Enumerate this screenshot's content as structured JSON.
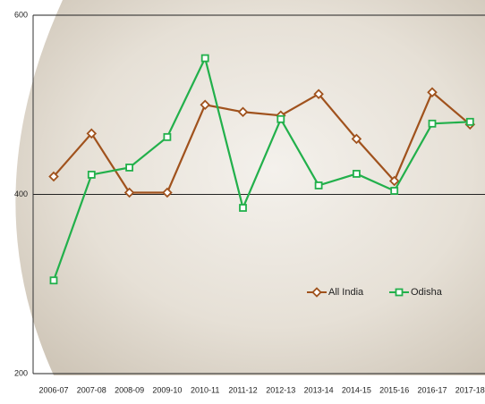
{
  "chart_data": {
    "type": "line",
    "categories": [
      "2006-07",
      "2007-08",
      "2008-09",
      "2009-10",
      "2010-11",
      "2011-12",
      "2012-13",
      "2013-14",
      "2014-15",
      "2015-16",
      "2016-17",
      "2017-18"
    ],
    "series": [
      {
        "name": "All India",
        "color": "#a0521d",
        "marker": "diamond",
        "values": [
          420,
          468,
          402,
          402,
          500,
          492,
          488,
          512,
          462,
          415,
          514,
          478
        ]
      },
      {
        "name": "Odisha",
        "color": "#22b04b",
        "marker": "square",
        "values": [
          304,
          422,
          430,
          464,
          552,
          385,
          484,
          410,
          423,
          404,
          479,
          481
        ]
      }
    ],
    "ylim": [
      200,
      600
    ],
    "yticks": [
      200,
      400,
      600
    ],
    "grid": true
  }
}
